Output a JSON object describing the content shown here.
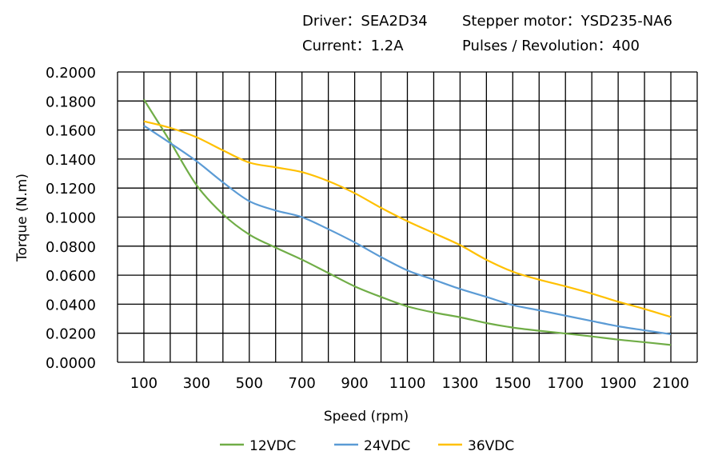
{
  "header": {
    "driver": "Driver：SEA2D34",
    "motor": "Stepper motor：YSD235-NA6",
    "current": "Current：1.2A",
    "pulses": "Pulses / Revolution：400"
  },
  "chart_data": {
    "type": "line",
    "title": "",
    "xlabel": "Speed  (rpm)",
    "ylabel": "Torque (N.m)",
    "xlim": [
      0,
      2200
    ],
    "ylim": [
      0,
      0.2
    ],
    "grid": true,
    "legend_position": "bottom",
    "x_ticks": [
      "100",
      "300",
      "500",
      "700",
      "900",
      "1100",
      "1300",
      "1500",
      "1700",
      "1900",
      "2100"
    ],
    "y_ticks": [
      "0.0000",
      "0.0200",
      "0.0400",
      "0.0600",
      "0.0800",
      "0.1000",
      "0.1200",
      "0.1400",
      "0.1600",
      "0.1800",
      "0.2000"
    ],
    "x": [
      100,
      200,
      300,
      400,
      500,
      600,
      700,
      800,
      900,
      1000,
      1100,
      1200,
      1300,
      1400,
      1500,
      1600,
      1700,
      1800,
      1900,
      2000,
      2100
    ],
    "series": [
      {
        "name": "12VDC",
        "color": "#70AD47",
        "values": [
          0.181,
          0.152,
          0.122,
          0.102,
          0.088,
          0.079,
          0.0707,
          0.0615,
          0.0523,
          0.045,
          0.0385,
          0.0343,
          0.031,
          0.027,
          0.0239,
          0.0217,
          0.0198,
          0.0178,
          0.0156,
          0.0138,
          0.0119
        ]
      },
      {
        "name": "24VDC",
        "color": "#5B9BD5",
        "values": [
          0.163,
          0.151,
          0.1385,
          0.124,
          0.111,
          0.1046,
          0.1,
          0.0917,
          0.0826,
          0.0725,
          0.0633,
          0.0569,
          0.0505,
          0.045,
          0.0394,
          0.0358,
          0.0321,
          0.0284,
          0.0248,
          0.022,
          0.0193
        ]
      },
      {
        "name": "36VDC",
        "color": "#FFC000",
        "values": [
          0.166,
          0.1615,
          0.155,
          0.146,
          0.1376,
          0.1343,
          0.131,
          0.1248,
          0.1165,
          0.1064,
          0.0972,
          0.089,
          0.0807,
          0.0706,
          0.0624,
          0.0569,
          0.0523,
          0.0473,
          0.0417,
          0.0367,
          0.0312
        ]
      }
    ]
  }
}
